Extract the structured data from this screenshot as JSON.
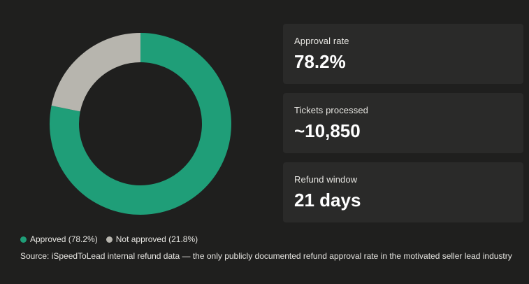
{
  "chart_data": {
    "type": "pie",
    "categories": [
      "Approved (78.2%)",
      "Not approved (21.8%)"
    ],
    "values": [
      78.2,
      21.8
    ],
    "colors": [
      "#1f9e78",
      "#b7b5ae"
    ],
    "donut": true,
    "legend_position": "bottom-left"
  },
  "stats": [
    {
      "label": "Approval rate",
      "value": "78.2%"
    },
    {
      "label": "Tickets processed",
      "value": "~10,850"
    },
    {
      "label": "Refund window",
      "value": "21 days"
    }
  ],
  "source": "Source: iSpeedToLead internal refund data — the only publicly documented refund approval rate in the motivated seller lead industry"
}
